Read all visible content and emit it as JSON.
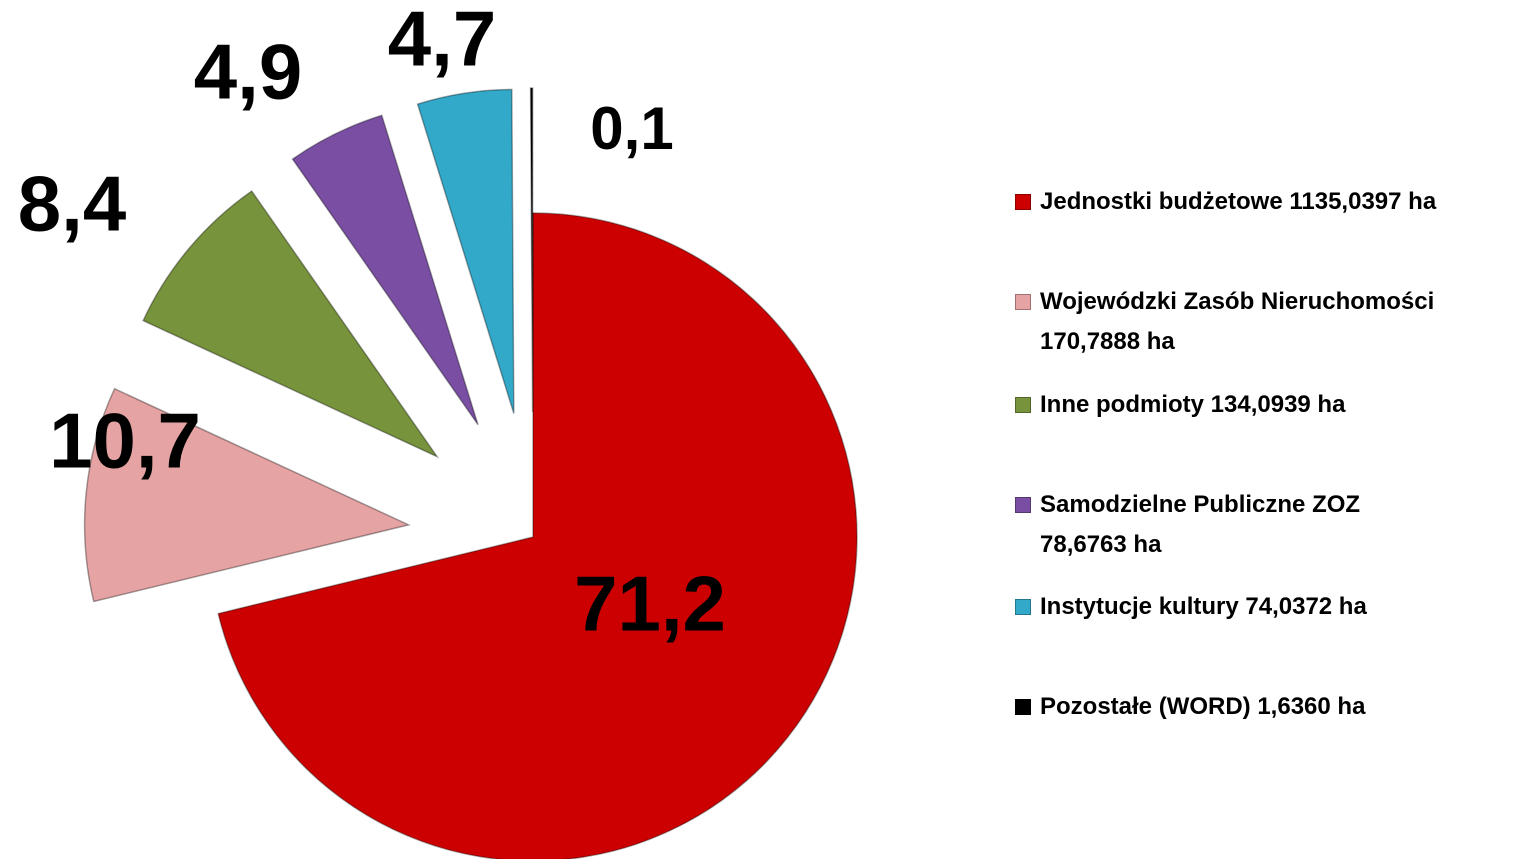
{
  "chart_data": {
    "type": "pie",
    "categories": [
      "Jednostki budżetowe 1135,0397 ha",
      "Wojewódzki Zasób Nieruchomości 170,7888 ha",
      "Inne podmioty 134,0939 ha",
      "Samodzielne Publiczne ZOZ 78,6763 ha",
      "Instytucje kultury 74,0372 ha",
      "Pozostałe (WORD) 1,6360 ha"
    ],
    "values": [
      71.2,
      10.7,
      8.4,
      4.9,
      4.7,
      0.1
    ],
    "value_labels": [
      "71,2",
      "10,7",
      "8,4",
      "4,9",
      "4,7",
      "0,1"
    ],
    "colors": [
      "#cc0000",
      "#e6a3a3",
      "#77933c",
      "#7a4fa3",
      "#33a9c9",
      "#000000"
    ],
    "legend": "right"
  }
}
